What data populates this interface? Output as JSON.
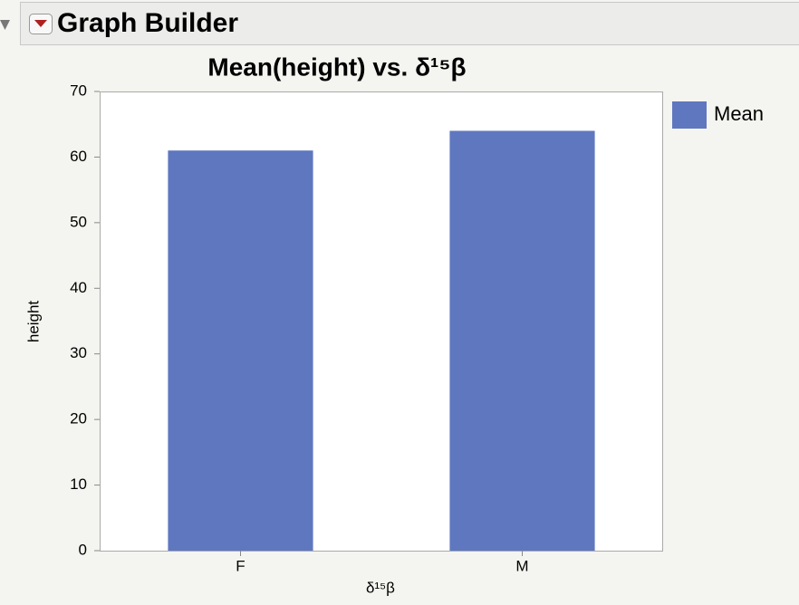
{
  "header": {
    "title": "Graph Builder"
  },
  "chart_data": {
    "type": "bar",
    "title": "Mean(height) vs. δ¹⁵β",
    "x_label": "δ¹⁵β",
    "y_label": "height",
    "categories": [
      "F",
      "M"
    ],
    "series": [
      {
        "name": "Mean",
        "color": "#5f77bf",
        "values": [
          61,
          64
        ]
      }
    ],
    "ylim": [
      0,
      70
    ],
    "yticks": [
      0,
      10,
      20,
      30,
      40,
      50,
      60,
      70
    ],
    "legend": "right"
  }
}
